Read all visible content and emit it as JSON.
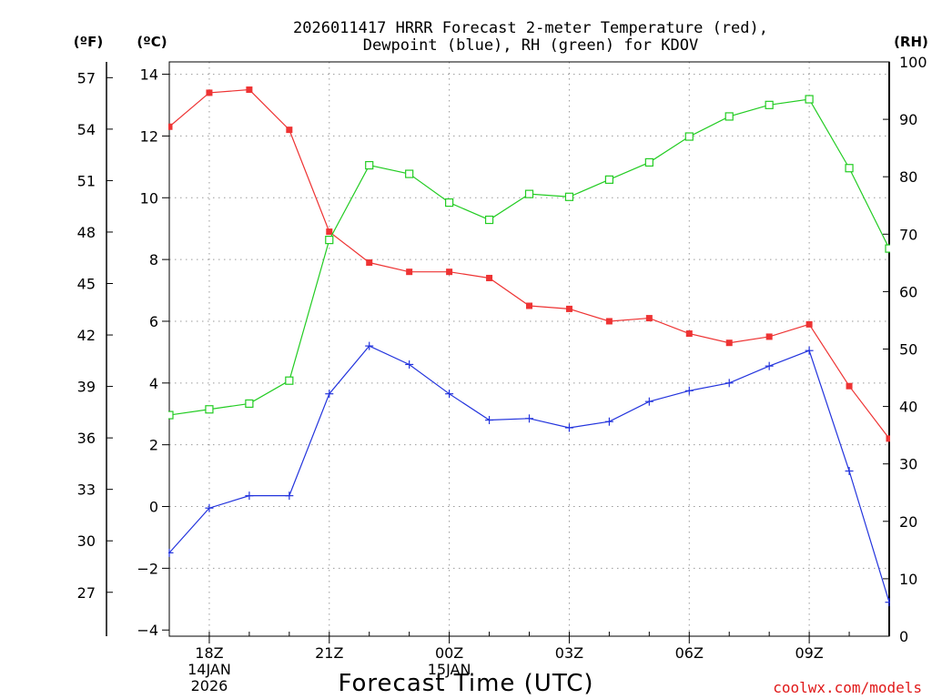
{
  "chart_data": {
    "type": "line",
    "title_line1": "2026011417 HRRR Forecast 2-meter Temperature (red),",
    "title_line2": "Dewpoint (blue), RH (green) for KDOV",
    "xlabel": "Forecast Time (UTC)",
    "credit": "coolwx.com/models",
    "units": {
      "fahrenheit": "(ºF)",
      "celsius": "(ºC)",
      "rh": "(RH)"
    },
    "x_hours": [
      17,
      18,
      19,
      20,
      21,
      22,
      23,
      24,
      25,
      26,
      27,
      28,
      29,
      30,
      31,
      32,
      33,
      34,
      35
    ],
    "xlim": [
      17,
      35
    ],
    "x_ticks": [
      {
        "hour": 18,
        "label": "18Z",
        "date": "14JAN",
        "year": "2026"
      },
      {
        "hour": 21,
        "label": "21Z"
      },
      {
        "hour": 24,
        "label": "00Z",
        "date": "15JAN"
      },
      {
        "hour": 27,
        "label": "03Z"
      },
      {
        "hour": 30,
        "label": "06Z"
      },
      {
        "hour": 33,
        "label": "09Z"
      }
    ],
    "y_celsius": {
      "min": -4.2,
      "max": 14.4,
      "ticks": [
        -4,
        -2,
        0,
        2,
        4,
        6,
        8,
        10,
        12,
        14
      ],
      "tick_labels": [
        "−4",
        "−2",
        "0",
        "2",
        "4",
        "6",
        "8",
        "10",
        "12",
        "14"
      ]
    },
    "y_fahrenheit": {
      "ticks": [
        27,
        30,
        33,
        36,
        39,
        42,
        45,
        48,
        51,
        54,
        57
      ],
      "tick_labels": [
        "27",
        "30",
        "33",
        "36",
        "39",
        "42",
        "45",
        "48",
        "51",
        "54",
        "57"
      ]
    },
    "y_rh": {
      "min": 0,
      "max": 100,
      "ticks": [
        0,
        10,
        20,
        30,
        40,
        50,
        60,
        70,
        80,
        90,
        100
      ],
      "tick_labels": [
        "0",
        "10",
        "20",
        "30",
        "40",
        "50",
        "60",
        "70",
        "80",
        "90",
        "100"
      ]
    },
    "series": [
      {
        "name": "2-meter Temperature",
        "axis": "celsius",
        "color": "#ee3333",
        "marker": "filled-square",
        "values": [
          12.3,
          13.4,
          13.5,
          12.2,
          8.9,
          7.9,
          7.6,
          7.6,
          7.4,
          6.5,
          6.4,
          6.0,
          6.1,
          5.6,
          5.3,
          5.5,
          5.9,
          3.9,
          2.2
        ]
      },
      {
        "name": "Dewpoint",
        "axis": "celsius",
        "color": "#2233dd",
        "marker": "plus",
        "values": [
          -1.5,
          -0.05,
          0.35,
          0.35,
          3.65,
          5.2,
          4.6,
          3.65,
          2.8,
          2.85,
          2.55,
          2.75,
          3.4,
          3.75,
          4.0,
          4.55,
          5.05,
          1.15,
          -3.1
        ]
      },
      {
        "name": "Relative Humidity",
        "axis": "rh",
        "color": "#22cc22",
        "marker": "open-square",
        "values": [
          38.5,
          39.5,
          40.5,
          44.5,
          69,
          82,
          80.5,
          75.5,
          72.5,
          77,
          76.5,
          79.5,
          82.5,
          87,
          90.5,
          92.5,
          93.5,
          81.5,
          67.5
        ]
      }
    ]
  }
}
